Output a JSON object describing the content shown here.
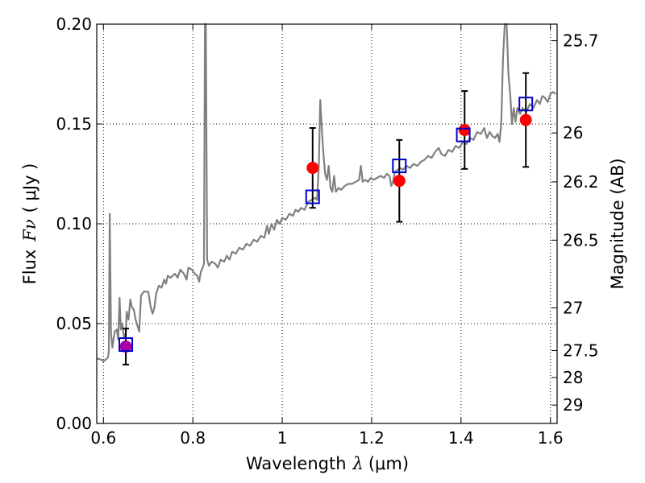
{
  "chart_data": {
    "type": "scatter",
    "xlabel_prefix": "Wavelength",
    "xlabel_symbol": "λ",
    "xlabel_unit": "(μm)",
    "ylabel_prefix": "Flux",
    "ylabel_symbol": "Fν",
    "ylabel_unit": "( μJy )",
    "y2label": "Magnitude (AB)",
    "xlim": [
      0.585,
      1.615
    ],
    "ylim": [
      0.0,
      0.2
    ],
    "x_ticks": [
      0.6,
      0.8,
      1.0,
      1.2,
      1.4,
      1.6
    ],
    "x_tick_labels": [
      "0.6",
      "0.8",
      "1",
      "1.2",
      "1.4",
      "1.6"
    ],
    "y_ticks": [
      0.0,
      0.05,
      0.1,
      0.15,
      0.2
    ],
    "y_tick_labels": [
      "0.00",
      "0.05",
      "0.10",
      "0.15",
      "0.20"
    ],
    "y2_ticks": [
      {
        "label": "25.7",
        "flux": 0.1917
      },
      {
        "label": "26",
        "flux": 0.1455
      },
      {
        "label": "26.2",
        "flux": 0.121
      },
      {
        "label": "26.5",
        "flux": 0.0918
      },
      {
        "label": "27",
        "flux": 0.0579
      },
      {
        "label": "27.5",
        "flux": 0.0365
      },
      {
        "label": "28",
        "flux": 0.023
      },
      {
        "label": "29",
        "flux": 0.0092
      }
    ],
    "grid": true,
    "colors": {
      "spectrum": "#808080",
      "observed": "#ff0000",
      "observed_first": "#aa00aa",
      "model": "#0000cc",
      "errorbar": "#000000"
    },
    "observed": [
      {
        "x": 0.65,
        "y": 0.0385,
        "err": 0.009
      },
      {
        "x": 1.068,
        "y": 0.128,
        "err": 0.02
      },
      {
        "x": 1.262,
        "y": 0.1215,
        "err": 0.0205
      },
      {
        "x": 1.408,
        "y": 0.147,
        "err": 0.0195
      },
      {
        "x": 1.545,
        "y": 0.152,
        "err": 0.0235
      }
    ],
    "model": [
      {
        "x": 0.65,
        "y": 0.0395
      },
      {
        "x": 1.068,
        "y": 0.1135
      },
      {
        "x": 1.262,
        "y": 0.129
      },
      {
        "x": 1.405,
        "y": 0.1445
      },
      {
        "x": 1.545,
        "y": 0.16
      }
    ],
    "spectrum": [
      [
        0.585,
        0.0325
      ],
      [
        0.595,
        0.032
      ],
      [
        0.6,
        0.031
      ],
      [
        0.605,
        0.032
      ],
      [
        0.61,
        0.033
      ],
      [
        0.612,
        0.036
      ],
      [
        0.614,
        0.105
      ],
      [
        0.617,
        0.045
      ],
      [
        0.62,
        0.038
      ],
      [
        0.625,
        0.046
      ],
      [
        0.63,
        0.047
      ],
      [
        0.633,
        0.042
      ],
      [
        0.636,
        0.063
      ],
      [
        0.639,
        0.047
      ],
      [
        0.642,
        0.05
      ],
      [
        0.646,
        0.043
      ],
      [
        0.65,
        0.045
      ],
      [
        0.652,
        0.056
      ],
      [
        0.656,
        0.052
      ],
      [
        0.66,
        0.062
      ],
      [
        0.664,
        0.058
      ],
      [
        0.668,
        0.057
      ],
      [
        0.672,
        0.052
      ],
      [
        0.676,
        0.049
      ],
      [
        0.68,
        0.046
      ],
      [
        0.684,
        0.064
      ],
      [
        0.69,
        0.066
      ],
      [
        0.7,
        0.066
      ],
      [
        0.706,
        0.058
      ],
      [
        0.71,
        0.055
      ],
      [
        0.714,
        0.058
      ],
      [
        0.718,
        0.065
      ],
      [
        0.724,
        0.069
      ],
      [
        0.73,
        0.068
      ],
      [
        0.736,
        0.072
      ],
      [
        0.74,
        0.07
      ],
      [
        0.744,
        0.074
      ],
      [
        0.75,
        0.073
      ],
      [
        0.76,
        0.075
      ],
      [
        0.766,
        0.073
      ],
      [
        0.772,
        0.077
      ],
      [
        0.78,
        0.075
      ],
      [
        0.786,
        0.072
      ],
      [
        0.79,
        0.078
      ],
      [
        0.798,
        0.077
      ],
      [
        0.804,
        0.075
      ],
      [
        0.81,
        0.074
      ],
      [
        0.814,
        0.071
      ],
      [
        0.818,
        0.076
      ],
      [
        0.822,
        0.078
      ],
      [
        0.825,
        0.08
      ],
      [
        0.827,
        0.2
      ],
      [
        0.829,
        0.2
      ],
      [
        0.832,
        0.082
      ],
      [
        0.836,
        0.079
      ],
      [
        0.842,
        0.081
      ],
      [
        0.85,
        0.08
      ],
      [
        0.856,
        0.078
      ],
      [
        0.862,
        0.082
      ],
      [
        0.87,
        0.081
      ],
      [
        0.876,
        0.084
      ],
      [
        0.882,
        0.082
      ],
      [
        0.888,
        0.086
      ],
      [
        0.896,
        0.085
      ],
      [
        0.904,
        0.088
      ],
      [
        0.912,
        0.087
      ],
      [
        0.92,
        0.09
      ],
      [
        0.928,
        0.089
      ],
      [
        0.936,
        0.092
      ],
      [
        0.944,
        0.091
      ],
      [
        0.952,
        0.094
      ],
      [
        0.96,
        0.093
      ],
      [
        0.966,
        0.099
      ],
      [
        0.97,
        0.095
      ],
      [
        0.976,
        0.1
      ],
      [
        0.982,
        0.097
      ],
      [
        0.988,
        0.102
      ],
      [
        0.994,
        0.1
      ],
      [
        1.0,
        0.103
      ],
      [
        1.008,
        0.102
      ],
      [
        1.016,
        0.105
      ],
      [
        1.024,
        0.104
      ],
      [
        1.03,
        0.107
      ],
      [
        1.036,
        0.106
      ],
      [
        1.042,
        0.108
      ],
      [
        1.05,
        0.107
      ],
      [
        1.058,
        0.111
      ],
      [
        1.066,
        0.112
      ],
      [
        1.074,
        0.113
      ],
      [
        1.078,
        0.112
      ],
      [
        1.082,
        0.13
      ],
      [
        1.085,
        0.162
      ],
      [
        1.088,
        0.15
      ],
      [
        1.092,
        0.135
      ],
      [
        1.096,
        0.125
      ],
      [
        1.1,
        0.122
      ],
      [
        1.104,
        0.129
      ],
      [
        1.108,
        0.118
      ],
      [
        1.112,
        0.116
      ],
      [
        1.116,
        0.124
      ],
      [
        1.12,
        0.116
      ],
      [
        1.126,
        0.118
      ],
      [
        1.132,
        0.117
      ],
      [
        1.14,
        0.119
      ],
      [
        1.148,
        0.12
      ],
      [
        1.156,
        0.12
      ],
      [
        1.164,
        0.121
      ],
      [
        1.172,
        0.122
      ],
      [
        1.176,
        0.129
      ],
      [
        1.18,
        0.121
      ],
      [
        1.186,
        0.122
      ],
      [
        1.192,
        0.121
      ],
      [
        1.198,
        0.123
      ],
      [
        1.204,
        0.122
      ],
      [
        1.212,
        0.123
      ],
      [
        1.22,
        0.124
      ],
      [
        1.228,
        0.123
      ],
      [
        1.234,
        0.125
      ],
      [
        1.24,
        0.124
      ],
      [
        1.244,
        0.119
      ],
      [
        1.248,
        0.121
      ],
      [
        1.252,
        0.126
      ],
      [
        1.258,
        0.127
      ],
      [
        1.264,
        0.128
      ],
      [
        1.27,
        0.127
      ],
      [
        1.278,
        0.129
      ],
      [
        1.286,
        0.128
      ],
      [
        1.294,
        0.13
      ],
      [
        1.302,
        0.129
      ],
      [
        1.31,
        0.131
      ],
      [
        1.318,
        0.132
      ],
      [
        1.326,
        0.134
      ],
      [
        1.334,
        0.133
      ],
      [
        1.342,
        0.136
      ],
      [
        1.35,
        0.138
      ],
      [
        1.356,
        0.135
      ],
      [
        1.364,
        0.134
      ],
      [
        1.372,
        0.137
      ],
      [
        1.38,
        0.136
      ],
      [
        1.388,
        0.139
      ],
      [
        1.396,
        0.138
      ],
      [
        1.404,
        0.141
      ],
      [
        1.412,
        0.14
      ],
      [
        1.42,
        0.143
      ],
      [
        1.428,
        0.142
      ],
      [
        1.436,
        0.146
      ],
      [
        1.444,
        0.145
      ],
      [
        1.452,
        0.148
      ],
      [
        1.458,
        0.143
      ],
      [
        1.464,
        0.146
      ],
      [
        1.47,
        0.144
      ],
      [
        1.476,
        0.143
      ],
      [
        1.482,
        0.145
      ],
      [
        1.486,
        0.141
      ],
      [
        1.49,
        0.15
      ],
      [
        1.494,
        0.183
      ],
      [
        1.498,
        0.2
      ],
      [
        1.502,
        0.2
      ],
      [
        1.506,
        0.175
      ],
      [
        1.51,
        0.165
      ],
      [
        1.514,
        0.15
      ],
      [
        1.518,
        0.158
      ],
      [
        1.522,
        0.151
      ],
      [
        1.526,
        0.158
      ],
      [
        1.532,
        0.155
      ],
      [
        1.538,
        0.158
      ],
      [
        1.546,
        0.156
      ],
      [
        1.554,
        0.16
      ],
      [
        1.562,
        0.158
      ],
      [
        1.57,
        0.162
      ],
      [
        1.576,
        0.16
      ],
      [
        1.582,
        0.164
      ],
      [
        1.588,
        0.163
      ],
      [
        1.594,
        0.161
      ],
      [
        1.6,
        0.165
      ],
      [
        1.606,
        0.166
      ],
      [
        1.612,
        0.165
      ]
    ]
  }
}
